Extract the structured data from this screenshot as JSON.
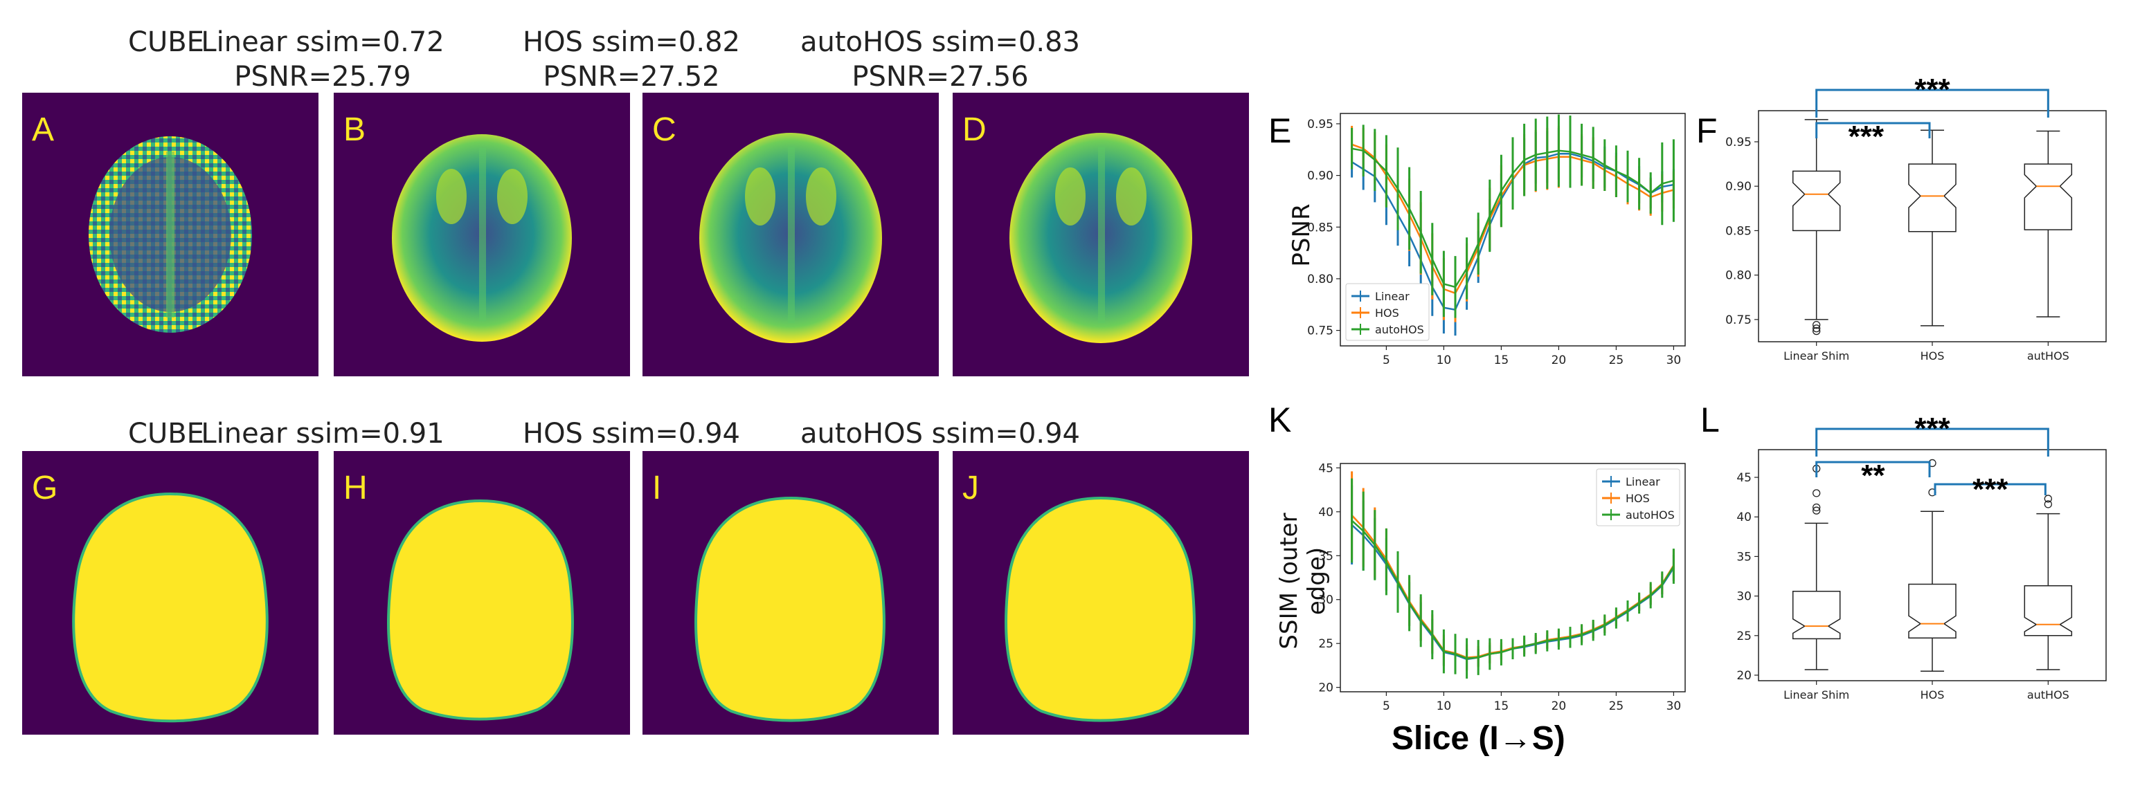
{
  "figure": {
    "top_titles": [
      {
        "line1": "CUBE",
        "line2": ""
      },
      {
        "line1": "Linear ssim=0.72",
        "line2": "PSNR=25.79"
      },
      {
        "line1": "HOS ssim=0.82",
        "line2": "PSNR=27.52"
      },
      {
        "line1": "autoHOS ssim=0.83",
        "line2": "PSNR=27.56"
      }
    ],
    "bottom_titles": [
      "CUBE",
      "Linear ssim=0.91",
      "HOS ssim=0.94",
      "autoHOS ssim=0.94"
    ],
    "top_letters": [
      "A",
      "B",
      "C",
      "D"
    ],
    "bottom_letters": [
      "G",
      "H",
      "I",
      "J"
    ],
    "chart_letters": {
      "E": "E",
      "F": "F",
      "K": "K",
      "L": "L"
    },
    "shared_xlabel": "Slice (I→S)",
    "colors": {
      "viridis_bg": "#440154",
      "viridis_fg": "#fde725",
      "linear": "#1f77b4",
      "hos": "#ff7f0e",
      "autohos": "#2ca02c",
      "median": "#ff7f0e",
      "bracket": "#1f77b4"
    }
  },
  "chart_data": [
    {
      "id": "E",
      "type": "line",
      "ylabel": "PSNR",
      "xlim": [
        1,
        31
      ],
      "ylim": [
        0.735,
        0.96
      ],
      "xticks": [
        5,
        10,
        15,
        20,
        25,
        30
      ],
      "yticks": [
        0.75,
        0.8,
        0.85,
        0.9,
        0.95
      ],
      "ytick_labels": [
        "0.75",
        "0.80",
        "0.85",
        "0.90",
        "0.95"
      ],
      "legend": "lower-left",
      "x": [
        2,
        3,
        4,
        5,
        6,
        7,
        8,
        9,
        10,
        11,
        12,
        13,
        14,
        15,
        16,
        17,
        18,
        19,
        20,
        21,
        22,
        23,
        24,
        25,
        26,
        27,
        28,
        29,
        30
      ],
      "series": [
        {
          "name": "Linear",
          "color": "#1f77b4",
          "values": [
            0.913,
            0.906,
            0.899,
            0.882,
            0.862,
            0.842,
            0.818,
            0.792,
            0.772,
            0.77,
            0.795,
            0.821,
            0.852,
            0.877,
            0.896,
            0.911,
            0.917,
            0.918,
            0.921,
            0.921,
            0.918,
            0.914,
            0.908,
            0.904,
            0.897,
            0.891,
            0.883,
            0.889,
            0.891
          ],
          "errors": [
            0.015,
            0.02,
            0.025,
            0.03,
            0.03,
            0.03,
            0.03,
            0.028,
            0.025,
            0.025,
            0.025,
            0.025,
            0.025,
            0.025,
            0.025,
            0.025,
            0.025,
            0.025,
            0.025,
            0.025,
            0.02,
            0.02,
            0.02,
            0.018,
            0.018,
            0.018,
            0.015,
            0.015,
            0.015
          ]
        },
        {
          "name": "HOS",
          "color": "#ff7f0e",
          "values": [
            0.93,
            0.926,
            0.917,
            0.9,
            0.883,
            0.862,
            0.839,
            0.812,
            0.79,
            0.786,
            0.806,
            0.83,
            0.858,
            0.88,
            0.897,
            0.91,
            0.914,
            0.916,
            0.918,
            0.918,
            0.915,
            0.912,
            0.905,
            0.899,
            0.892,
            0.886,
            0.879,
            0.883,
            0.886
          ],
          "errors": [
            0.018,
            0.02,
            0.025,
            0.03,
            0.035,
            0.035,
            0.035,
            0.032,
            0.03,
            0.028,
            0.028,
            0.028,
            0.03,
            0.03,
            0.03,
            0.03,
            0.03,
            0.03,
            0.03,
            0.03,
            0.025,
            0.025,
            0.02,
            0.02,
            0.02,
            0.02,
            0.018,
            0.018,
            0.018
          ]
        },
        {
          "name": "autoHOS",
          "color": "#2ca02c",
          "values": [
            0.926,
            0.924,
            0.915,
            0.904,
            0.887,
            0.868,
            0.845,
            0.819,
            0.795,
            0.792,
            0.81,
            0.834,
            0.861,
            0.885,
            0.902,
            0.915,
            0.92,
            0.922,
            0.924,
            0.923,
            0.92,
            0.917,
            0.91,
            0.904,
            0.899,
            0.892,
            0.883,
            0.892,
            0.895
          ],
          "errors": [
            0.02,
            0.025,
            0.03,
            0.035,
            0.04,
            0.04,
            0.04,
            0.035,
            0.032,
            0.03,
            0.03,
            0.03,
            0.035,
            0.035,
            0.035,
            0.035,
            0.035,
            0.035,
            0.035,
            0.035,
            0.03,
            0.03,
            0.025,
            0.025,
            0.025,
            0.025,
            0.02,
            0.04,
            0.04
          ]
        }
      ]
    },
    {
      "id": "F",
      "type": "box",
      "categories": [
        "Linear Shim",
        "HOS",
        "autHOS"
      ],
      "ylim": [
        0.725,
        0.985
      ],
      "yticks": [
        0.75,
        0.8,
        0.85,
        0.9,
        0.95
      ],
      "ytick_labels": [
        "0.75",
        "0.80",
        "0.85",
        "0.90",
        "0.95"
      ],
      "boxes": [
        {
          "min": 0.75,
          "q1": 0.85,
          "median": 0.891,
          "q3": 0.917,
          "max": 0.975,
          "notch_lo": 0.878,
          "notch_hi": 0.904,
          "outliers": [
            0.744,
            0.74,
            0.737
          ]
        },
        {
          "min": 0.743,
          "q1": 0.849,
          "median": 0.889,
          "q3": 0.925,
          "max": 0.963,
          "notch_lo": 0.876,
          "notch_hi": 0.902,
          "outliers": []
        },
        {
          "min": 0.753,
          "q1": 0.851,
          "median": 0.9,
          "q3": 0.925,
          "max": 0.962,
          "notch_lo": 0.887,
          "notch_hi": 0.913,
          "outliers": []
        }
      ],
      "significance": [
        {
          "from": 0,
          "to": 2,
          "label": "***"
        },
        {
          "from": 0,
          "to": 1,
          "label": "***"
        }
      ]
    },
    {
      "id": "K",
      "type": "line",
      "ylabel": "SSIM (outer edge)",
      "xlim": [
        1,
        31
      ],
      "ylim": [
        19.5,
        45.5
      ],
      "xticks": [
        5,
        10,
        15,
        20,
        25,
        30
      ],
      "yticks": [
        20,
        25,
        30,
        35,
        40,
        45
      ],
      "ytick_labels": [
        "20",
        "25",
        "30",
        "35",
        "40",
        "45"
      ],
      "legend": "upper-right",
      "x": [
        2,
        3,
        4,
        5,
        6,
        7,
        8,
        9,
        10,
        11,
        12,
        13,
        14,
        15,
        16,
        17,
        18,
        19,
        20,
        21,
        22,
        23,
        24,
        25,
        26,
        27,
        28,
        29,
        30
      ],
      "series": [
        {
          "name": "Linear",
          "color": "#1f77b4",
          "values": [
            38.5,
            37.3,
            35.8,
            34.0,
            31.8,
            29.5,
            27.5,
            25.8,
            24.0,
            23.7,
            23.2,
            23.4,
            23.8,
            24.0,
            24.4,
            24.6,
            24.9,
            25.2,
            25.4,
            25.6,
            25.9,
            26.4,
            27.0,
            27.8,
            28.6,
            29.5,
            30.4,
            31.6,
            33.6
          ],
          "errors": [
            4.5,
            4.0,
            3.5,
            3.0,
            2.8,
            2.5,
            2.2,
            2.0,
            1.5,
            1.2,
            1.2,
            1.0,
            1.0,
            0.8,
            0.8,
            0.8,
            0.8,
            0.8,
            0.8,
            0.8,
            0.8,
            0.8,
            0.8,
            0.8,
            0.8,
            0.8,
            1.0,
            1.0,
            1.5
          ]
        },
        {
          "name": "HOS",
          "color": "#ff7f0e",
          "values": [
            39.6,
            38.2,
            36.5,
            34.6,
            32.2,
            29.8,
            27.8,
            26.1,
            24.2,
            23.9,
            23.4,
            23.5,
            23.9,
            24.1,
            24.5,
            24.7,
            25.0,
            25.4,
            25.6,
            25.8,
            26.1,
            26.6,
            27.2,
            28.0,
            28.8,
            29.7,
            30.6,
            31.8,
            33.9
          ],
          "errors": [
            5.0,
            4.5,
            4.0,
            3.5,
            3.0,
            2.8,
            2.5,
            2.2,
            1.8,
            1.5,
            1.5,
            1.2,
            1.2,
            1.0,
            1.0,
            1.0,
            1.0,
            1.0,
            1.0,
            1.0,
            1.0,
            1.0,
            1.0,
            1.0,
            1.0,
            1.0,
            1.2,
            1.2,
            1.8
          ]
        },
        {
          "name": "autoHOS",
          "color": "#2ca02c",
          "values": [
            39.0,
            37.8,
            36.2,
            34.3,
            32.0,
            29.6,
            27.6,
            26.0,
            24.1,
            23.8,
            23.3,
            23.4,
            23.8,
            24.0,
            24.4,
            24.7,
            25.0,
            25.3,
            25.5,
            25.7,
            26.0,
            26.5,
            27.1,
            27.9,
            28.7,
            29.6,
            30.5,
            31.7,
            33.8
          ],
          "errors": [
            4.8,
            4.5,
            4.0,
            3.8,
            3.5,
            3.2,
            3.0,
            2.8,
            2.5,
            2.3,
            2.3,
            2.0,
            1.8,
            1.5,
            1.2,
            1.2,
            1.2,
            1.2,
            1.2,
            1.2,
            1.2,
            1.2,
            1.2,
            1.2,
            1.2,
            1.2,
            1.5,
            1.5,
            2.0
          ]
        }
      ]
    },
    {
      "id": "L",
      "type": "box",
      "categories": [
        "Linear Shim",
        "HOS",
        "autHOS"
      ],
      "ylim": [
        19.3,
        48.5
      ],
      "yticks": [
        20,
        25,
        30,
        35,
        40,
        45
      ],
      "ytick_labels": [
        "20",
        "25",
        "30",
        "35",
        "40",
        "45"
      ],
      "boxes": [
        {
          "min": 20.7,
          "q1": 24.6,
          "median": 26.2,
          "q3": 30.6,
          "max": 39.2,
          "notch_lo": 25.3,
          "notch_hi": 27.1,
          "outliers": [
            40.8,
            41.2,
            43.0,
            46.1
          ]
        },
        {
          "min": 20.5,
          "q1": 24.7,
          "median": 26.5,
          "q3": 31.5,
          "max": 40.7,
          "notch_lo": 25.5,
          "notch_hi": 27.5,
          "outliers": [
            43.1,
            46.8
          ]
        },
        {
          "min": 20.7,
          "q1": 25.0,
          "median": 26.4,
          "q3": 31.3,
          "max": 40.4,
          "notch_lo": 25.5,
          "notch_hi": 27.3,
          "outliers": [
            41.6,
            42.3
          ]
        }
      ],
      "significance": [
        {
          "from": 0,
          "to": 2,
          "label": "***"
        },
        {
          "from": 0,
          "to": 1,
          "label": "**"
        },
        {
          "from": 1,
          "to": 2,
          "label": "***"
        }
      ]
    }
  ]
}
